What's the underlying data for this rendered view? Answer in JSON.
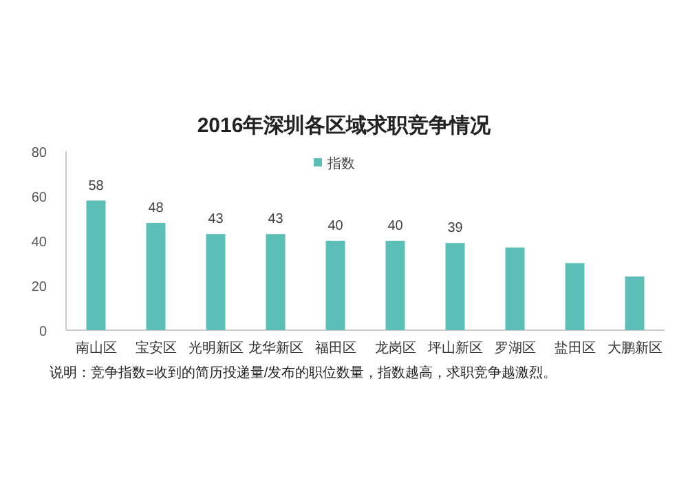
{
  "chart_data": {
    "type": "bar",
    "title": "2016年深圳各区域求职竞争情况",
    "categories": [
      "南山区",
      "宝安区",
      "光明新区",
      "龙华新区",
      "福田区",
      "龙岗区",
      "坪山新区",
      "罗湖区",
      "盐田区",
      "大鹏新区"
    ],
    "series": [
      {
        "name": "指数",
        "color": "#5bbfb7",
        "values": [
          58,
          48,
          43,
          43,
          40,
          40,
          39,
          37,
          30,
          24
        ],
        "value_labels": [
          "58",
          "48",
          "43",
          "43",
          "40",
          "40",
          "39",
          null,
          null,
          null
        ]
      }
    ],
    "ylim": [
      0,
      80
    ],
    "yticks": [
      0,
      20,
      40,
      60,
      80
    ],
    "legend": "top",
    "annotations": [
      "说明：竞争指数=收到的简历投递量/发布的职位数量，指数越高，求职竞争越激烈。"
    ]
  }
}
